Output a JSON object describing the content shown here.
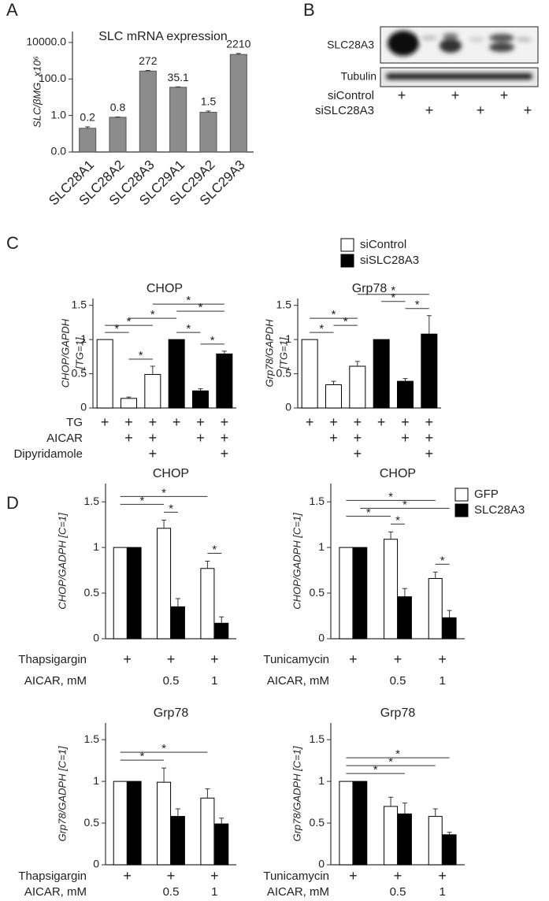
{
  "panels": [
    "A",
    "B",
    "C",
    "D"
  ],
  "blot": {
    "bands": [
      "SLC28A3",
      "Tubulin"
    ],
    "rows": [
      {
        "label": "siControl",
        "cells": [
          "+",
          null,
          "+",
          null,
          "+",
          null
        ]
      },
      {
        "label": "siSLC28A3",
        "cells": [
          null,
          "+",
          null,
          "+",
          null,
          "+"
        ]
      }
    ]
  },
  "chart_data": [
    {
      "type": "bar",
      "title": "SLC mRNA expression",
      "ylabel": "SLC/βMG, x10⁶",
      "categories": [
        "SLC28A1",
        "SLC28A2",
        "SLC28A3",
        "SLC29A1",
        "SLC29A2",
        "SLC29A3"
      ],
      "values": [
        0.2,
        0.8,
        272,
        35.1,
        1.5,
        2210
      ],
      "errors": [
        0.04,
        0.03,
        20,
        2,
        0.25,
        300
      ],
      "show_value_labels": true,
      "color": "#8c8c8c",
      "log_scale": true,
      "ylim": [
        0.01,
        40000
      ],
      "yticks": [
        {
          "value": 0.01,
          "label": "0.0"
        },
        {
          "value": 1,
          "label": "1.0"
        },
        {
          "value": 100,
          "label": "100.0"
        },
        {
          "value": 10000,
          "label": "10000.0"
        }
      ]
    },
    {
      "type": "bar",
      "title": "CHOP",
      "ylabel": "CHOP/GAPDH",
      "ylabel_note": "[TG=1]",
      "categories": [
        null,
        null,
        null,
        null,
        null,
        null
      ],
      "series": [
        {
          "name": "siControl",
          "color": "#ffffff",
          "values": [
            1,
            0.14,
            0.49,
            null,
            null,
            null
          ],
          "errors": [
            0,
            0.02,
            0.12,
            null,
            null,
            null
          ]
        },
        {
          "name": "siSLC28A3",
          "color": "#000000",
          "values": [
            null,
            null,
            null,
            1,
            0.25,
            0.79
          ],
          "errors": [
            null,
            null,
            null,
            0,
            0.03,
            0.04
          ]
        }
      ],
      "ylim": [
        0,
        1.6
      ],
      "yticks": [
        0,
        0.5,
        1,
        1.5
      ],
      "conditions": [
        {
          "label": "TG",
          "cells": [
            "+",
            "+",
            "+",
            "+",
            "+",
            "+"
          ]
        },
        {
          "label": "AICAR",
          "cells": [
            null,
            "+",
            "+",
            null,
            "+",
            "+"
          ]
        },
        {
          "label": "Dipyridamole",
          "cells": [
            null,
            null,
            "+",
            null,
            null,
            "+"
          ]
        }
      ],
      "significance": [
        {
          "from": [
            0,
            0
          ],
          "to": [
            0,
            1
          ],
          "label": "*"
        },
        {
          "from": [
            0,
            0
          ],
          "to": [
            0,
            2
          ],
          "label": "*"
        },
        {
          "from": [
            0,
            1
          ],
          "to": [
            0,
            2
          ],
          "label": "*"
        },
        {
          "from": [
            0,
            1
          ],
          "to": [
            1,
            3
          ],
          "label": "*"
        },
        {
          "from": [
            1,
            3
          ],
          "to": [
            1,
            4
          ],
          "label": "*"
        },
        {
          "from": [
            1,
            3
          ],
          "to": [
            1,
            5
          ],
          "label": "*"
        },
        {
          "from": [
            1,
            4
          ],
          "to": [
            1,
            5
          ],
          "label": "*"
        },
        {
          "from": [
            0,
            2
          ],
          "to": [
            1,
            5
          ],
          "label": "*"
        }
      ]
    },
    {
      "type": "bar",
      "title": "Grp78",
      "ylabel": "Grp78/GAPDH",
      "ylabel_note": "[TG=1]",
      "legend": "top-right",
      "categories": [
        null,
        null,
        null,
        null,
        null,
        null
      ],
      "series": [
        {
          "name": "siControl",
          "color": "#ffffff",
          "values": [
            1,
            0.34,
            0.61,
            null,
            null,
            null
          ],
          "errors": [
            0,
            0.05,
            0.07,
            null,
            null,
            null
          ]
        },
        {
          "name": "siSLC28A3",
          "color": "#000000",
          "values": [
            null,
            null,
            null,
            1,
            0.39,
            1.08
          ],
          "errors": [
            null,
            null,
            null,
            0,
            0.04,
            0.27
          ]
        }
      ],
      "ylim": [
        0,
        1.6
      ],
      "yticks": [
        0,
        0.5,
        1,
        1.5
      ],
      "conditions": [
        {
          "cells": [
            "+",
            "+",
            "+",
            "+",
            "+",
            "+"
          ]
        },
        {
          "cells": [
            null,
            "+",
            "+",
            null,
            "+",
            "+"
          ]
        },
        {
          "cells": [
            null,
            null,
            "+",
            null,
            null,
            "+"
          ]
        }
      ],
      "significance": [
        {
          "from": [
            0,
            0
          ],
          "to": [
            0,
            1
          ],
          "label": "*"
        },
        {
          "from": [
            0,
            0
          ],
          "to": [
            0,
            2
          ],
          "label": "*"
        },
        {
          "from": [
            0,
            1
          ],
          "to": [
            0,
            2
          ],
          "label": "*"
        },
        {
          "from": [
            1,
            3
          ],
          "to": [
            1,
            4
          ],
          "label": "*"
        },
        {
          "from": [
            1,
            4
          ],
          "to": [
            1,
            5
          ],
          "label": "*"
        },
        {
          "from": [
            0,
            2
          ],
          "to": [
            1,
            5
          ],
          "label": "*"
        }
      ]
    },
    {
      "type": "bar",
      "title": "CHOP",
      "ylabel": "CHOP/GADPH [C=1]",
      "categories": [
        null,
        null,
        null
      ],
      "series": [
        {
          "name": "GFP",
          "color": "#ffffff",
          "values": [
            1,
            1.21,
            0.77
          ],
          "errors": [
            0,
            0.09,
            0.08
          ]
        },
        {
          "name": "SLC28A3",
          "color": "#000000",
          "values": [
            1,
            0.35,
            0.17
          ],
          "errors": [
            0,
            0.09,
            0.07
          ]
        }
      ],
      "ylim": [
        0,
        1.7
      ],
      "yticks": [
        0,
        0.5,
        1,
        1.5
      ],
      "conditions": [
        {
          "label": "Thapsigargin",
          "cells": [
            "+",
            "+",
            "+"
          ]
        },
        {
          "label": "AICAR, mM",
          "cells": [
            null,
            "0.5",
            "1"
          ]
        }
      ],
      "significance": [
        {
          "from": [
            0,
            0
          ],
          "to": [
            0,
            2
          ],
          "label": "*"
        },
        {
          "from": [
            0,
            0
          ],
          "to": [
            0,
            1
          ],
          "label": "*"
        },
        {
          "from": [
            0,
            1
          ],
          "to": [
            1,
            1
          ],
          "label": "*"
        },
        {
          "from": [
            0,
            2
          ],
          "to": [
            1,
            2
          ],
          "label": "*"
        }
      ]
    },
    {
      "type": "bar",
      "title": "CHOP",
      "ylabel": "CHOP/GADPH [C=1]",
      "legend": "top-right",
      "categories": [
        null,
        null,
        null
      ],
      "series": [
        {
          "name": "GFP",
          "color": "#ffffff",
          "values": [
            1,
            1.09,
            0.66
          ],
          "errors": [
            0,
            0.08,
            0.07
          ]
        },
        {
          "name": "SLC28A3",
          "color": "#000000",
          "values": [
            1,
            0.46,
            0.23
          ],
          "errors": [
            0,
            0.09,
            0.08
          ]
        }
      ],
      "ylim": [
        0,
        1.7
      ],
      "yticks": [
        0,
        0.5,
        1,
        1.5
      ],
      "conditions": [
        {
          "label": "Tunicamycin",
          "cells": [
            "+",
            "+",
            "+"
          ]
        },
        {
          "label": "AICAR, mM",
          "cells": [
            null,
            "0.5",
            "1"
          ]
        }
      ],
      "significance": [
        {
          "from": [
            0,
            0
          ],
          "to": [
            0,
            2
          ],
          "label": "*"
        },
        {
          "from": [
            1,
            0
          ],
          "to": [
            1,
            2
          ],
          "label": "*"
        },
        {
          "from": [
            0,
            0
          ],
          "to": [
            0,
            1
          ],
          "label": "*"
        },
        {
          "from": [
            0,
            1
          ],
          "to": [
            1,
            1
          ],
          "label": "*"
        },
        {
          "from": [
            0,
            2
          ],
          "to": [
            1,
            2
          ],
          "label": "*"
        }
      ]
    },
    {
      "type": "bar",
      "title": "Grp78",
      "ylabel": "Grp78/GADPH [C=1]",
      "categories": [
        null,
        null,
        null
      ],
      "series": [
        {
          "name": "GFP",
          "color": "#ffffff",
          "values": [
            1,
            0.99,
            0.8
          ],
          "errors": [
            0,
            0.17,
            0.11
          ]
        },
        {
          "name": "SLC28A3",
          "color": "#000000",
          "values": [
            1,
            0.58,
            0.49
          ],
          "errors": [
            0,
            0.09,
            0.07
          ]
        }
      ],
      "ylim": [
        0,
        1.7
      ],
      "yticks": [
        0,
        0.5,
        1,
        1.5
      ],
      "conditions": [
        {
          "label": "Thapsigargin",
          "cells": [
            "+",
            "+",
            "+"
          ]
        },
        {
          "label": "AICAR, mM",
          "cells": [
            null,
            "0.5",
            "1"
          ]
        }
      ],
      "significance": [
        {
          "from": [
            0,
            0
          ],
          "to": [
            0,
            2
          ],
          "label": "*"
        },
        {
          "from": [
            0,
            0
          ],
          "to": [
            0,
            1
          ],
          "label": "*"
        }
      ]
    },
    {
      "type": "bar",
      "title": "Grp78",
      "ylabel": "Grp78/GADPH [C=1]",
      "categories": [
        null,
        null,
        null
      ],
      "series": [
        {
          "name": "GFP",
          "color": "#ffffff",
          "values": [
            1,
            0.7,
            0.58
          ],
          "errors": [
            0,
            0.11,
            0.09
          ]
        },
        {
          "name": "SLC28A3",
          "color": "#000000",
          "values": [
            1,
            0.61,
            0.36
          ],
          "errors": [
            0,
            0.13,
            0.03
          ]
        }
      ],
      "ylim": [
        0,
        1.7
      ],
      "yticks": [
        0,
        0.5,
        1,
        1.5
      ],
      "conditions": [
        {
          "label": "Tunicamycin",
          "cells": [
            "+",
            "+",
            "+"
          ]
        },
        {
          "label": "AICAR, mM",
          "cells": [
            null,
            "0.5",
            "1"
          ]
        }
      ],
      "significance": [
        {
          "from": [
            0,
            0
          ],
          "to": [
            1,
            2
          ],
          "label": "*"
        },
        {
          "from": [
            0,
            0
          ],
          "to": [
            1,
            1
          ],
          "label": "*"
        },
        {
          "from": [
            0,
            0
          ],
          "to": [
            0,
            2
          ],
          "label": "*"
        }
      ]
    }
  ]
}
